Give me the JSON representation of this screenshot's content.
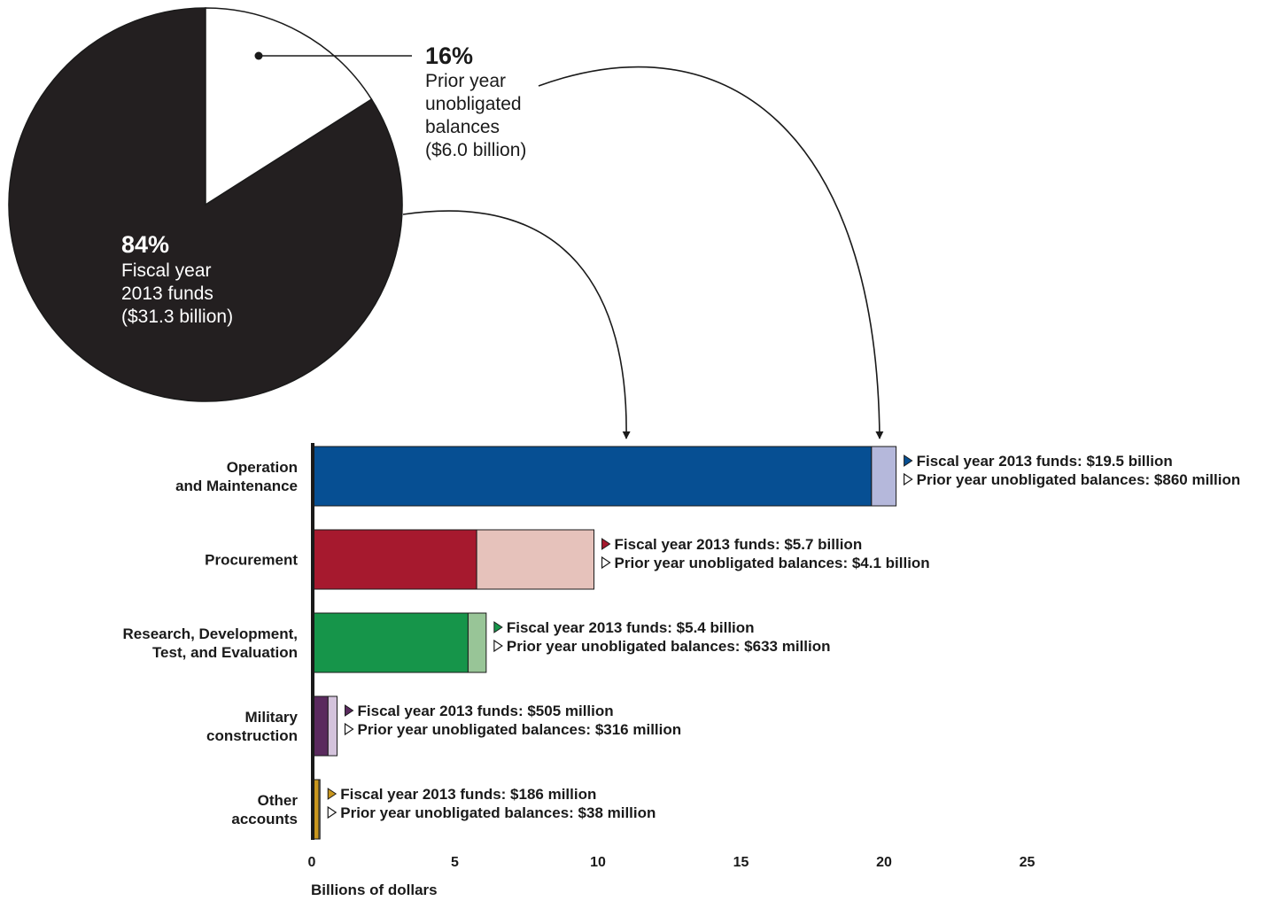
{
  "chart_data": [
    {
      "type": "pie",
      "slices": [
        {
          "key": "fy2013",
          "percent": 84,
          "percent_label": "84%",
          "label_lines": [
            "Fiscal year",
            "2013 funds",
            "($31.3 billion)"
          ],
          "value_billion": 31.3,
          "color": "#231f20"
        },
        {
          "key": "prior",
          "percent": 16,
          "percent_label": "16%",
          "label_lines": [
            "Prior year",
            "unobligated",
            "balances",
            "($6.0 billion)"
          ],
          "value_billion": 6.0,
          "color": "#ffffff"
        }
      ]
    },
    {
      "type": "bar",
      "orientation": "horizontal",
      "stacked": true,
      "xlabel": "Billions of dollars",
      "xlim": [
        0,
        25
      ],
      "xticks": [
        0,
        5,
        10,
        15,
        20,
        25
      ],
      "categories": [
        {
          "label_lines": [
            "Operation",
            "and Maintenance"
          ],
          "fy2013": 19.5,
          "prior": 0.86,
          "fy_color": "#064f93",
          "prior_color": "#b5b8db",
          "fy_text": "Fiscal year 2013 funds: $19.5 billion",
          "prior_text": "Prior year unobligated balances: $860 million"
        },
        {
          "label_lines": [
            "Procurement"
          ],
          "fy2013": 5.7,
          "prior": 4.1,
          "fy_color": "#a6192e",
          "prior_color": "#e6c2bb",
          "fy_text": "Fiscal year 2013 funds: $5.7 billion",
          "prior_text": "Prior year unobligated balances: $4.1 billion"
        },
        {
          "label_lines": [
            "Research, Development,",
            "Test, and Evaluation"
          ],
          "fy2013": 5.4,
          "prior": 0.633,
          "fy_color": "#16954a",
          "prior_color": "#98c597",
          "fy_text": "Fiscal year 2013 funds: $5.4 billion",
          "prior_text": "Prior year unobligated balances: $633 million"
        },
        {
          "label_lines": [
            "Military",
            "construction"
          ],
          "fy2013": 0.505,
          "prior": 0.316,
          "fy_color": "#5a2a5e",
          "prior_color": "#d4c3dc",
          "fy_text": "Fiscal year 2013 funds: $505 million",
          "prior_text": "Prior year unobligated balances: $316 million"
        },
        {
          "label_lines": [
            "Other",
            "accounts"
          ],
          "fy2013": 0.186,
          "prior": 0.038,
          "fy_color": "#c8961e",
          "prior_color": "#efe2b8",
          "fy_text": "Fiscal year 2013 funds: $186 million",
          "prior_text": "Prior year unobligated balances: $38 million"
        }
      ]
    }
  ]
}
